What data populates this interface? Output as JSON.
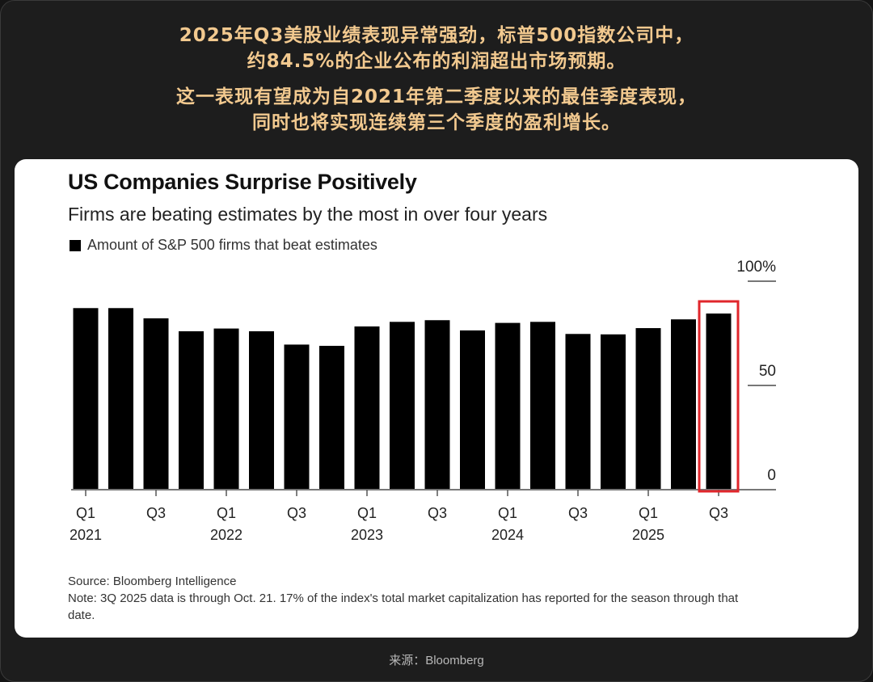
{
  "headline": {
    "lines": [
      "2025年Q3美股业绩表现异常强劲，标普500指数公司中，",
      "约84.5%的企业公布的利润超出市场预期。",
      "这一表现有望成为自2021年第二季度以来的最佳季度表现，",
      "同时也将实现连续第三个季度的盈利增长。"
    ]
  },
  "chart_data": {
    "type": "bar",
    "title": "US Companies Surprise Positively",
    "subtitle": "Firms are beating estimates by the most in over four years",
    "legend": [
      "Amount of S&P 500 firms that beat estimates"
    ],
    "legend_placement": "top-left",
    "categories": [
      "Q1 2021",
      "Q2 2021",
      "Q3 2021",
      "Q4 2021",
      "Q1 2022",
      "Q2 2022",
      "Q3 2022",
      "Q4 2022",
      "Q1 2023",
      "Q2 2023",
      "Q3 2023",
      "Q4 2023",
      "Q1 2024",
      "Q2 2024",
      "Q3 2024",
      "Q4 2024",
      "Q1 2025",
      "Q2 2025",
      "Q3 2025"
    ],
    "series": [
      {
        "name": "Amount of S&P 500 firms that beat estimates",
        "values": [
          87.1,
          87.1,
          82.2,
          76,
          77.3,
          76,
          69.6,
          69,
          78.3,
          80.5,
          81.3,
          76.4,
          80,
          80.5,
          74.7,
          74.5,
          77.5,
          81.7,
          84.5
        ],
        "color": "#000000"
      }
    ],
    "x_tick_labels": [
      {
        "q": "Q1",
        "year": "2021"
      },
      {
        "q": "Q3",
        "year": ""
      },
      {
        "q": "Q1",
        "year": "2022"
      },
      {
        "q": "Q3",
        "year": ""
      },
      {
        "q": "Q1",
        "year": "2023"
      },
      {
        "q": "Q3",
        "year": ""
      },
      {
        "q": "Q1",
        "year": "2024"
      },
      {
        "q": "Q3",
        "year": ""
      },
      {
        "q": "Q1",
        "year": "2025"
      },
      {
        "q": "Q3",
        "year": ""
      }
    ],
    "y_ticks": [
      0,
      50,
      100
    ],
    "y_tick_labels": [
      "0",
      "50",
      "100%"
    ],
    "ylim": [
      0,
      100
    ],
    "y_axis_side": "right",
    "grid": false,
    "highlight": {
      "category": "Q3 2025",
      "color": "#e0262b"
    }
  },
  "notes": {
    "source": "Source: Bloomberg Intelligence",
    "note": "Note: 3Q 2025 data is through Oct. 21. 17% of the index's total market capitalization has reported for the season through that date."
  },
  "footer": {
    "source": "来源：Bloomberg"
  },
  "colors": {
    "headline": "#f2c98f",
    "background": "#1d1d1d",
    "card": "#ffffff",
    "highlight": "#e0262b"
  }
}
